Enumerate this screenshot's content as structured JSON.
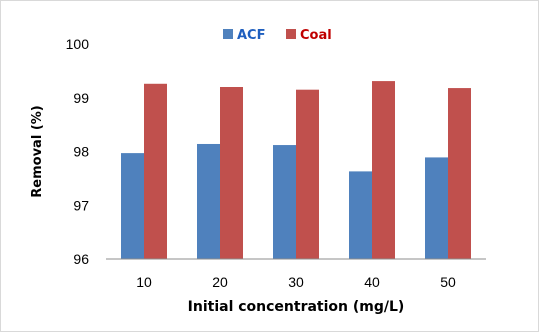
{
  "chart_data": {
    "type": "bar",
    "title": "",
    "xlabel": "Initial concentration (mg/L)",
    "ylabel": "Removal (%)",
    "categories": [
      "10",
      "20",
      "30",
      "40",
      "50"
    ],
    "series": [
      {
        "name": "ACF",
        "color": "#4f81bd",
        "values": [
          97.97,
          98.14,
          98.12,
          97.63,
          97.89
        ]
      },
      {
        "name": "Coal",
        "color": "#c0504d",
        "values": [
          99.26,
          99.2,
          99.15,
          99.31,
          99.18
        ]
      }
    ],
    "ylim": [
      96,
      100
    ],
    "yticks": [
      "96",
      "97",
      "98",
      "99",
      "100"
    ],
    "grid": false,
    "legend": "top-center",
    "legend_text_colors": {
      "ACF": "#1f5fbf",
      "Coal": "#c00000"
    }
  }
}
